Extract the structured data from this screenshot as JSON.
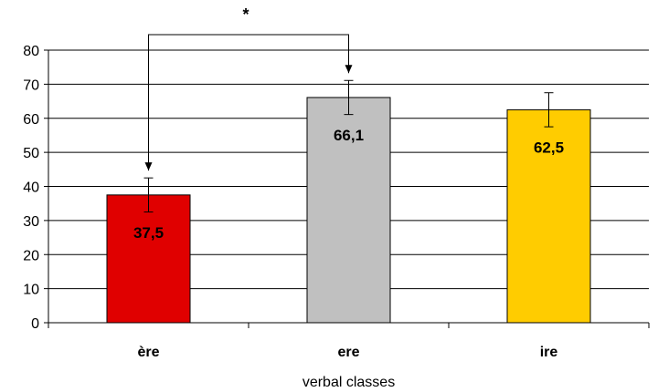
{
  "chart_data": {
    "type": "bar",
    "categories": [
      "ère",
      "ere",
      "ire"
    ],
    "values": [
      37.5,
      66.1,
      62.5
    ],
    "value_labels": [
      "37,5",
      "66,1",
      "62,5"
    ],
    "error_bars": [
      5,
      5,
      5
    ],
    "colors": [
      "#e00000",
      "#c0c0c0",
      "#ffcc00"
    ],
    "xlabel": "verbal classes",
    "ylabel": "",
    "ylim": [
      0,
      80
    ],
    "yticks": [
      0,
      10,
      20,
      30,
      40,
      50,
      60,
      70,
      80
    ],
    "grid": true,
    "legend": "none",
    "annotations": [
      {
        "text": "*",
        "from_category": 0,
        "to_category": 1,
        "type": "significance-bracket"
      }
    ]
  }
}
